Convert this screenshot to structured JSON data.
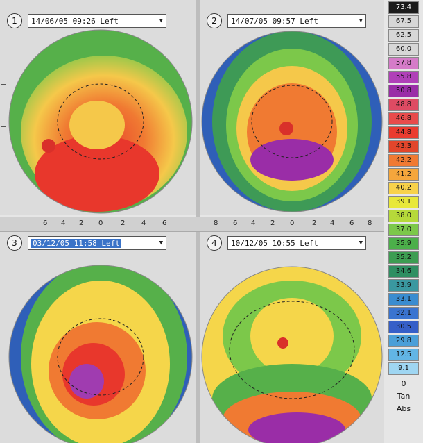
{
  "panels": [
    {
      "num": "1",
      "label": "14/06/05  09:26 Left",
      "highlight": false
    },
    {
      "num": "2",
      "label": "14/07/05  09:57 Left",
      "highlight": false
    },
    {
      "num": "3",
      "label": "03/12/05  11:58 Left",
      "highlight": true
    },
    {
      "num": "4",
      "label": "10/12/05  10:55 Left",
      "highlight": false
    }
  ],
  "scale_left": [
    "6",
    "4",
    "2",
    "0",
    "2",
    "4",
    "6"
  ],
  "scale_right": [
    "8",
    "6",
    "4",
    "2",
    "0",
    "2",
    "4",
    "6",
    "8"
  ],
  "legend": {
    "values": [
      "73.4",
      "67.5",
      "62.5",
      "60.0",
      "57.8",
      "55.8",
      "50.8",
      "48.8",
      "46.8",
      "44.8",
      "43.3",
      "42.2",
      "41.2",
      "40.2",
      "39.1",
      "38.0",
      "37.0",
      "35.9",
      "35.2",
      "34.6",
      "33.9",
      "33.1",
      "32.1",
      "30.5",
      "29.8",
      "12.5",
      "9.1"
    ],
    "colors": [
      "#1b1b1b",
      "#d7d7d7",
      "#d7d7d7",
      "#d7d7d7",
      "#d57bc8",
      "#b040b8",
      "#9a2da7",
      "#de4b63",
      "#e84b4b",
      "#ea3b2f",
      "#e2462b",
      "#f07a32",
      "#f5a63c",
      "#f8d24a",
      "#e8e83a",
      "#b6d93a",
      "#7cc84a",
      "#4caf4a",
      "#3d9d52",
      "#2f8f62",
      "#3a98a0",
      "#3a8cd0",
      "#3a74d0",
      "#365fc8",
      "#4a9fd8",
      "#62b5e5",
      "#9fd6f2"
    ],
    "label_zero": "0",
    "label_tan": "Tan",
    "label_bottom": "Abs"
  },
  "colors": {
    "panel_bg": "#dcdcdc",
    "highlight": "#3a73c8"
  }
}
